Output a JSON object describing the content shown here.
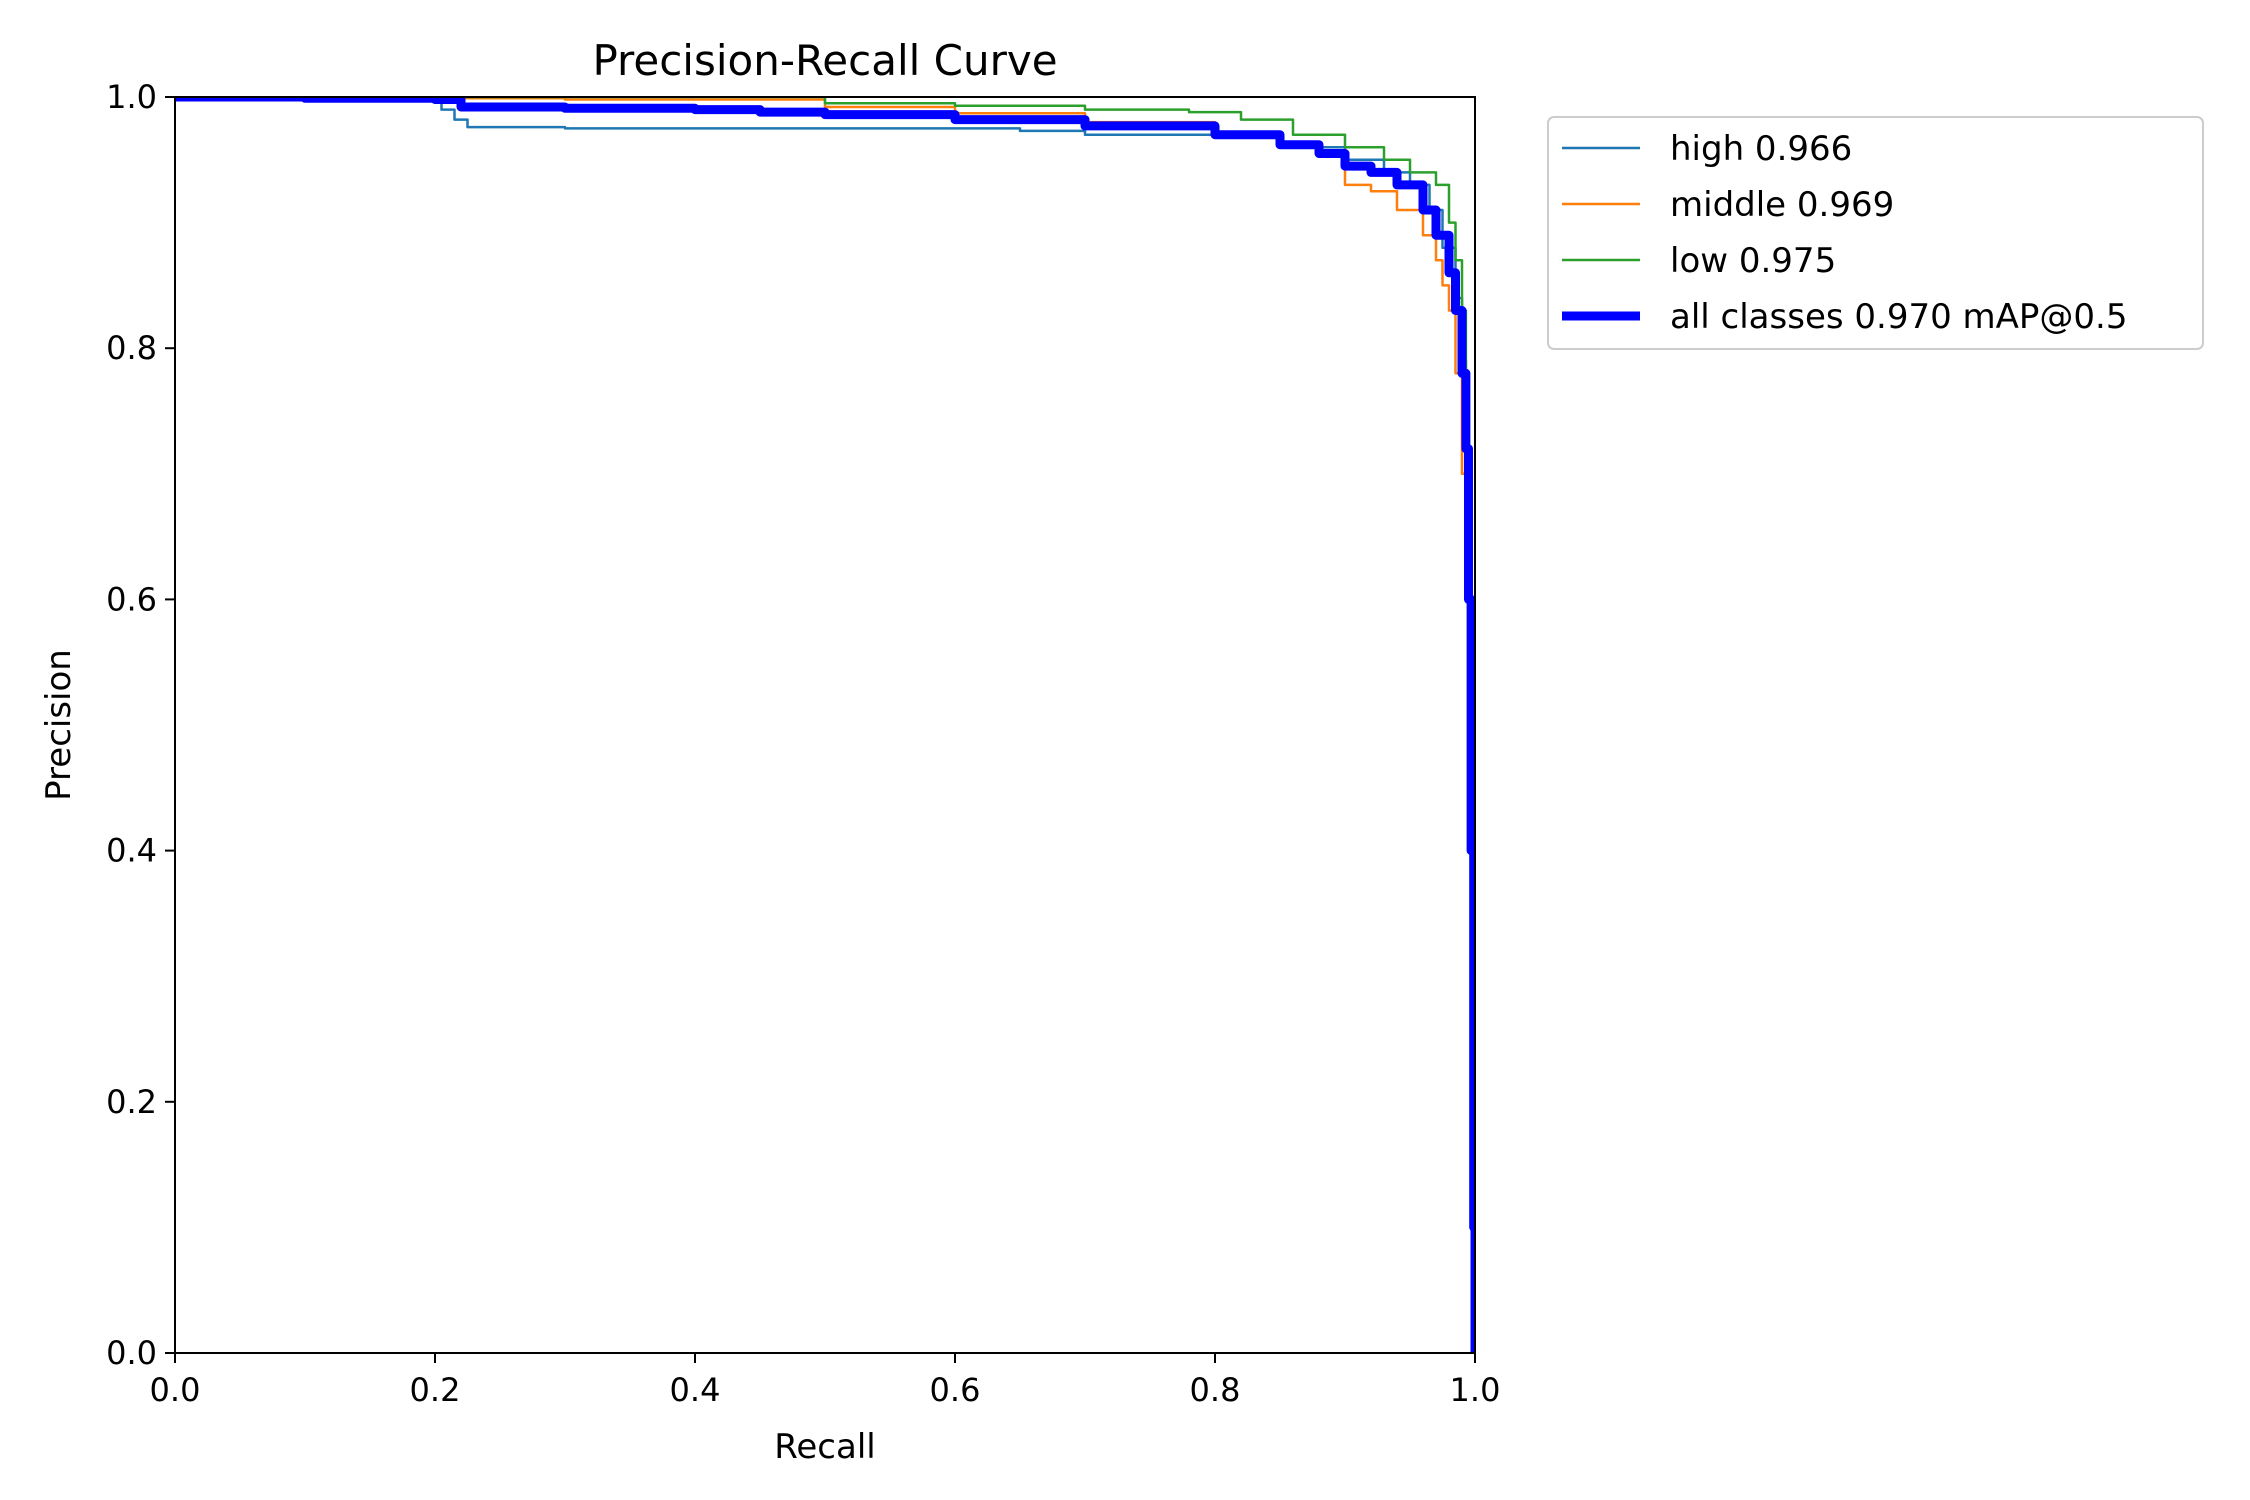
{
  "chart_data": {
    "type": "line",
    "title": "Precision-Recall Curve",
    "xlabel": "Recall",
    "ylabel": "Precision",
    "xlim": [
      0.0,
      1.0
    ],
    "ylim": [
      0.0,
      1.0
    ],
    "x_ticks": [
      "0.0",
      "0.2",
      "0.4",
      "0.6",
      "0.8",
      "1.0"
    ],
    "y_ticks": [
      "0.0",
      "0.2",
      "0.4",
      "0.6",
      "0.8",
      "1.0"
    ],
    "grid": false,
    "legend_position": "outside-top-right",
    "series": [
      {
        "name": "high 0.966",
        "color": "#1f77b4",
        "width": "thin",
        "x": [
          0.0,
          0.05,
          0.1,
          0.2,
          0.205,
          0.215,
          0.225,
          0.3,
          0.4,
          0.5,
          0.6,
          0.65,
          0.7,
          0.8,
          0.85,
          0.9,
          0.93,
          0.95,
          0.965,
          0.975,
          0.985,
          0.99,
          0.993,
          0.996,
          0.998,
          1.0
        ],
        "y": [
          1.0,
          1.0,
          0.999,
          0.998,
          0.99,
          0.982,
          0.976,
          0.975,
          0.975,
          0.975,
          0.975,
          0.973,
          0.97,
          0.968,
          0.96,
          0.95,
          0.94,
          0.93,
          0.91,
          0.88,
          0.84,
          0.79,
          0.7,
          0.5,
          0.2,
          0.0
        ]
      },
      {
        "name": "middle 0.969",
        "color": "#ff7f0e",
        "width": "thin",
        "x": [
          0.0,
          0.1,
          0.2,
          0.3,
          0.4,
          0.5,
          0.6,
          0.7,
          0.8,
          0.85,
          0.88,
          0.9,
          0.92,
          0.94,
          0.96,
          0.97,
          0.975,
          0.98,
          0.985,
          0.99,
          0.995,
          0.998,
          1.0
        ],
        "y": [
          1.0,
          1.0,
          0.999,
          0.998,
          0.998,
          0.992,
          0.987,
          0.98,
          0.968,
          0.96,
          0.955,
          0.93,
          0.925,
          0.91,
          0.89,
          0.87,
          0.85,
          0.83,
          0.78,
          0.7,
          0.55,
          0.3,
          0.0
        ]
      },
      {
        "name": "low 0.975",
        "color": "#2ca02c",
        "width": "thin",
        "x": [
          0.0,
          0.1,
          0.2,
          0.3,
          0.4,
          0.5,
          0.6,
          0.7,
          0.78,
          0.82,
          0.86,
          0.9,
          0.93,
          0.95,
          0.97,
          0.98,
          0.985,
          0.99,
          0.993,
          0.995,
          0.997,
          0.999,
          1.0
        ],
        "y": [
          1.0,
          1.0,
          1.0,
          1.0,
          1.0,
          0.995,
          0.993,
          0.99,
          0.988,
          0.982,
          0.97,
          0.96,
          0.95,
          0.94,
          0.93,
          0.9,
          0.87,
          0.83,
          0.78,
          0.62,
          0.4,
          0.15,
          0.0
        ]
      },
      {
        "name": "all classes 0.970 mAP@0.5",
        "color": "#0000ff",
        "width": "thick",
        "x": [
          0.0,
          0.1,
          0.2,
          0.22,
          0.3,
          0.4,
          0.45,
          0.5,
          0.6,
          0.7,
          0.8,
          0.85,
          0.88,
          0.9,
          0.92,
          0.94,
          0.96,
          0.97,
          0.98,
          0.985,
          0.99,
          0.993,
          0.995,
          0.997,
          0.999,
          1.0
        ],
        "y": [
          1.0,
          0.999,
          0.998,
          0.992,
          0.991,
          0.99,
          0.988,
          0.986,
          0.982,
          0.977,
          0.97,
          0.962,
          0.955,
          0.945,
          0.94,
          0.93,
          0.91,
          0.89,
          0.86,
          0.83,
          0.78,
          0.72,
          0.6,
          0.4,
          0.1,
          0.0
        ]
      }
    ]
  }
}
